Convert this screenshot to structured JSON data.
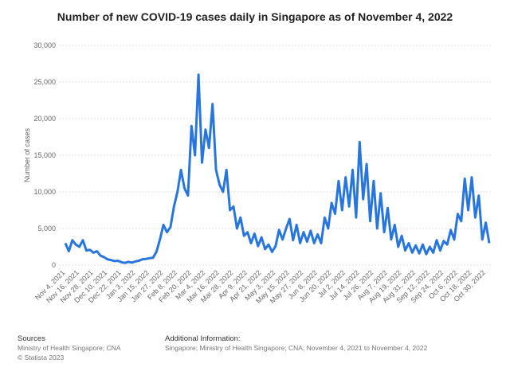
{
  "chart_data": {
    "type": "line",
    "title": "Number of new COVID-19 cases daily in Singapore as of November 4, 2022",
    "y_label": "Number of cases",
    "categories": [
      "Nov 4, 2021",
      null,
      null,
      null,
      "Nov 16, 2021",
      null,
      null,
      null,
      "Nov 28, 2021",
      null,
      null,
      null,
      "Dec 10, 2021",
      null,
      null,
      null,
      "Dec 22, 2021",
      null,
      null,
      null,
      "Jan 3, 2022",
      null,
      null,
      null,
      "Jan 15, 2022",
      null,
      null,
      null,
      "Jan 27, 2022",
      null,
      null,
      null,
      "Feb 8, 2022",
      null,
      null,
      null,
      "Feb 20, 2022",
      null,
      null,
      null,
      "Mar 4, 2022",
      null,
      null,
      null,
      "Mar 16, 2022",
      null,
      null,
      null,
      "Mar 28, 2022",
      null,
      null,
      null,
      "Apr 9, 2022",
      null,
      null,
      null,
      "Apr 21, 2022",
      null,
      null,
      null,
      "May 3, 2022",
      null,
      null,
      null,
      "May 15, 2022",
      null,
      null,
      null,
      "May 27, 2022",
      null,
      null,
      null,
      "Jun 8, 2022",
      null,
      null,
      null,
      "Jun 20, 2022",
      null,
      null,
      null,
      "Jul 2, 2022",
      null,
      null,
      null,
      "Jul 14, 2022",
      null,
      null,
      null,
      "Jul 26, 2022",
      null,
      null,
      null,
      "Aug 7, 2022",
      null,
      null,
      null,
      "Aug 19, 2022",
      null,
      null,
      null,
      "Aug 31, 2022",
      null,
      null,
      null,
      "Sep 12, 2022",
      null,
      null,
      null,
      "Sep 24, 2022",
      null,
      null,
      null,
      "Oct 6, 2022",
      null,
      null,
      null,
      "Oct 18, 2022",
      null,
      null,
      null,
      "Oct 30, 2022",
      null
    ],
    "series": [
      {
        "name": "Number of cases",
        "color": "#2876dd",
        "values": [
          3000,
          1900,
          3400,
          2800,
          2500,
          3400,
          2000,
          2100,
          1700,
          1900,
          1300,
          1100,
          800,
          700,
          550,
          600,
          400,
          300,
          450,
          350,
          500,
          600,
          800,
          850,
          950,
          1000,
          1800,
          3500,
          5500,
          4500,
          5200,
          8000,
          10000,
          13000,
          10500,
          9500,
          19000,
          15000,
          26000,
          14000,
          18500,
          16000,
          22000,
          13000,
          11000,
          10000,
          13000,
          7500,
          8000,
          5000,
          6500,
          4000,
          4500,
          3000,
          4300,
          2600,
          3800,
          2200,
          2800,
          1800,
          2600,
          4800,
          3500,
          5000,
          6300,
          3400,
          5500,
          3000,
          4500,
          3200,
          4700,
          3000,
          4200,
          3000,
          6500,
          5000,
          8500,
          7000,
          11500,
          7500,
          12000,
          8000,
          13000,
          6500,
          16800,
          9000,
          13800,
          6000,
          11500,
          5000,
          9800,
          4500,
          7800,
          3500,
          5500,
          2500,
          4000,
          2000,
          3000,
          1700,
          2700,
          1600,
          2800,
          1500,
          2500,
          1700,
          3400,
          2000,
          3300,
          2800,
          4800,
          3500,
          7000,
          6000,
          11800,
          7500,
          12000,
          6500,
          9500,
          3500,
          5800,
          3000
        ]
      }
    ],
    "ylim": [
      0,
      30000
    ],
    "yticks": [
      0,
      {
        "value": 5000,
        "label": "5,000"
      },
      {
        "value": 10000,
        "label": "10,000"
      },
      {
        "value": 15000,
        "label": "15,000"
      },
      {
        "value": 20000,
        "label": "20,000"
      },
      {
        "value": 25000,
        "label": "25,000"
      },
      {
        "value": 30000,
        "label": "30,000"
      }
    ],
    "grid": true,
    "sources_title": "Sources",
    "sources": [
      "Ministry of Health Singapore; CNA",
      "© Statista 2023"
    ],
    "info_title": "Additional Information:",
    "info": "Singapore; Ministry of Health Singapore; CNA; November 4, 2021 to November 4, 2022"
  }
}
